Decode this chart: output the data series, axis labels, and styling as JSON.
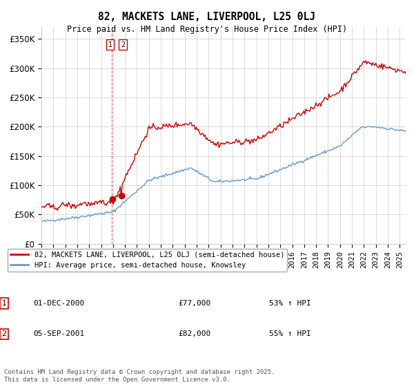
{
  "title": "82, MACKETS LANE, LIVERPOOL, L25 0LJ",
  "subtitle": "Price paid vs. HM Land Registry's House Price Index (HPI)",
  "ylabel_ticks": [
    "£0",
    "£50K",
    "£100K",
    "£150K",
    "£200K",
    "£250K",
    "£300K",
    "£350K"
  ],
  "ytick_values": [
    0,
    50000,
    100000,
    150000,
    200000,
    250000,
    300000,
    350000
  ],
  "ylim": [
    0,
    370000
  ],
  "legend_line1": "82, MACKETS LANE, LIVERPOOL, L25 0LJ (semi-detached house)",
  "legend_line2": "HPI: Average price, semi-detached house, Knowsley",
  "line1_color": "#cc0000",
  "line2_color": "#6699cc",
  "vline_color": "#cc0000",
  "purchase1_date": "01-DEC-2000",
  "purchase1_price": 77000,
  "purchase1_hpi": "53% ↑ HPI",
  "purchase2_date": "05-SEP-2001",
  "purchase2_price": 82000,
  "purchase2_hpi": "55% ↑ HPI",
  "footnote": "Contains HM Land Registry data © Crown copyright and database right 2025.\nThis data is licensed under the Open Government Licence v3.0.",
  "background_color": "#ffffff",
  "grid_color": "#cccccc"
}
